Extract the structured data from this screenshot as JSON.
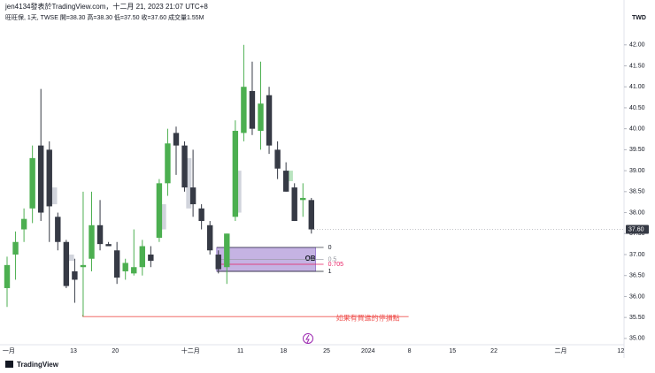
{
  "chart_data": {
    "type": "candlestick",
    "header": "jen4134發表於TradingView.com，十二月 21, 2023 21:07 UTC+8",
    "subheader": "旺旺保, 1天, TWSE  開=38.30  高=38.30  低=37.50  收=37.60  成交量1.55M",
    "currency": "TWD",
    "brand": "TradingView",
    "up_color": "#4caf50",
    "down_color": "#363a45",
    "ghost_color": "#d1d4dc",
    "candles": [
      {
        "open": 36.2,
        "high": 36.95,
        "low": 35.75,
        "close": 36.75
      },
      {
        "open": 37.0,
        "high": 37.55,
        "low": 36.4,
        "close": 37.3
      },
      {
        "open": 37.6,
        "high": 38.1,
        "low": 37.3,
        "close": 37.85
      },
      {
        "open": 38.1,
        "high": 39.6,
        "low": 37.75,
        "close": 39.3
      },
      {
        "open": 39.6,
        "high": 40.95,
        "low": 37.8,
        "close": 38.0
      },
      {
        "open": 39.5,
        "high": 39.7,
        "low": 37.3,
        "close": 38.15
      },
      {
        "open": 37.9,
        "high": 38.0,
        "low": 37.1,
        "close": 37.3
      },
      {
        "open": 37.3,
        "high": 37.35,
        "low": 36.2,
        "close": 36.25
      },
      {
        "open": 36.6,
        "high": 36.9,
        "low": 35.85,
        "close": 36.4
      },
      {
        "open": 36.7,
        "high": 38.5,
        "low": 35.52,
        "close": 36.75
      },
      {
        "open": 36.9,
        "high": 38.5,
        "low": 36.6,
        "close": 37.7
      },
      {
        "open": 37.7,
        "high": 38.3,
        "low": 37.1,
        "close": 37.25
      },
      {
        "open": 37.25,
        "high": 37.3,
        "low": 37.2,
        "close": 37.2
      },
      {
        "open": 37.1,
        "high": 37.3,
        "low": 36.3,
        "close": 36.45
      },
      {
        "open": 36.6,
        "high": 36.9,
        "low": 36.4,
        "close": 36.8
      },
      {
        "open": 36.55,
        "high": 37.6,
        "low": 36.5,
        "close": 36.7
      },
      {
        "open": 36.7,
        "high": 37.35,
        "low": 36.5,
        "close": 37.2
      },
      {
        "open": 37.0,
        "high": 37.2,
        "low": 36.7,
        "close": 36.85
      },
      {
        "open": 37.4,
        "high": 38.8,
        "low": 37.3,
        "close": 38.7
      },
      {
        "open": 38.7,
        "high": 40.0,
        "low": 38.4,
        "close": 39.65
      },
      {
        "open": 39.9,
        "high": 40.05,
        "low": 38.9,
        "close": 39.6
      },
      {
        "open": 39.6,
        "high": 39.7,
        "low": 38.5,
        "close": 38.6
      },
      {
        "open": 38.6,
        "high": 39.5,
        "low": 37.9,
        "close": 38.2
      },
      {
        "open": 38.1,
        "high": 38.2,
        "low": 37.6,
        "close": 37.8
      },
      {
        "open": 37.7,
        "high": 37.8,
        "low": 37.0,
        "close": 37.1
      },
      {
        "open": 37.0,
        "high": 37.1,
        "low": 36.55,
        "close": 36.65
      },
      {
        "open": 36.7,
        "high": 37.5,
        "low": 36.3,
        "close": 37.5
      },
      {
        "open": 37.9,
        "high": 40.2,
        "low": 37.8,
        "close": 39.95
      },
      {
        "open": 39.9,
        "high": 42.0,
        "low": 39.7,
        "close": 41.0
      },
      {
        "open": 40.9,
        "high": 41.6,
        "low": 39.85,
        "close": 40.0
      },
      {
        "open": 39.95,
        "high": 41.6,
        "low": 39.5,
        "close": 40.6
      },
      {
        "open": 40.8,
        "high": 41.0,
        "low": 39.4,
        "close": 39.6
      },
      {
        "open": 39.5,
        "high": 39.7,
        "low": 38.8,
        "close": 39.05
      },
      {
        "open": 39.0,
        "high": 39.2,
        "low": 38.5,
        "close": 38.5
      },
      {
        "open": 38.6,
        "high": 38.7,
        "low": 37.8,
        "close": 37.8
      },
      {
        "open": 38.3,
        "high": 38.7,
        "low": 37.9,
        "close": 38.35
      },
      {
        "open": 38.3,
        "high": 38.35,
        "low": 37.5,
        "close": 37.6
      }
    ],
    "ghost_bars": [
      {
        "index": 5.6,
        "low": 38.2,
        "high": 38.6
      },
      {
        "index": 7.6,
        "low": 36.85,
        "high": 37.0
      },
      {
        "index": 18.5,
        "low": 37.6,
        "high": 38.2
      },
      {
        "index": 21.5,
        "low": 38.1,
        "high": 39.3
      },
      {
        "index": 27.4,
        "low": 38.0,
        "high": 39.0
      },
      {
        "index": 33.5,
        "low": 38.75,
        "high": 39.0
      }
    ],
    "order_block": {
      "label": "OB",
      "start": 24.8,
      "end": 36.5,
      "high": 37.17,
      "low": 36.6,
      "levels": [
        {
          "value": 0,
          "label": "0"
        },
        {
          "value": 0.5,
          "label": "0.5"
        },
        {
          "value": 0.705,
          "label": "0.705"
        },
        {
          "value": 1,
          "label": "1"
        }
      ]
    },
    "stop_line": {
      "start": 8.95,
      "end": 47.5,
      "price": 35.52,
      "label": "如果有買進的停損點"
    },
    "last_price": {
      "value": 37.6,
      "label": "37.60"
    },
    "ylim": [
      34.85,
      43.07
    ],
    "yticks": [
      {
        "value": 35,
        "label": "35.00"
      },
      {
        "value": 35.5,
        "label": "35.50"
      },
      {
        "value": 36,
        "label": "36.00"
      },
      {
        "value": 36.5,
        "label": "36.50"
      },
      {
        "value": 37,
        "label": "37.00"
      },
      {
        "value": 37.5,
        "label": "37.50"
      },
      {
        "value": 38,
        "label": "38.00"
      },
      {
        "value": 38.5,
        "label": "38.50"
      },
      {
        "value": 39,
        "label": "39.00"
      },
      {
        "value": 39.5,
        "label": "39.50"
      },
      {
        "value": 40,
        "label": "40.00"
      },
      {
        "value": 40.5,
        "label": "40.50"
      },
      {
        "value": 41,
        "label": "41.00"
      },
      {
        "value": 41.5,
        "label": "41.50"
      },
      {
        "value": 42,
        "label": "42.00"
      }
    ],
    "xticks": [
      {
        "value": 0.2,
        "label": "一月"
      },
      {
        "value": 7.85,
        "label": "13"
      },
      {
        "value": 12.8,
        "label": "20"
      },
      {
        "value": 21.7,
        "label": "十二月"
      },
      {
        "value": 27.6,
        "label": "11"
      },
      {
        "value": 32.7,
        "label": "18"
      },
      {
        "value": 37.8,
        "label": "25"
      },
      {
        "value": 42.7,
        "label": "2024"
      },
      {
        "value": 47.6,
        "label": "8"
      },
      {
        "value": 52.7,
        "label": "15"
      },
      {
        "value": 57.6,
        "label": "22"
      },
      {
        "value": 65.5,
        "label": "二月"
      },
      {
        "value": 72.6,
        "label": "12"
      }
    ]
  }
}
